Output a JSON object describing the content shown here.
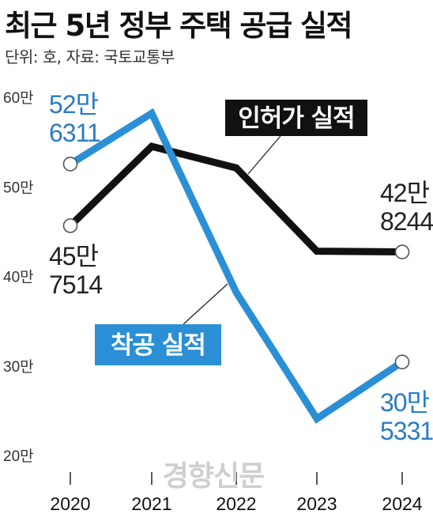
{
  "header": {
    "title": "최근 5년 정부 주택 공급 실적",
    "unit_source": "단위: 호, 자료: 국토교통부"
  },
  "watermark": "경향신문",
  "chart_data": {
    "type": "line",
    "title": "최근 5년 정부 주택 공급 실적",
    "x": [
      "2020",
      "2021",
      "2022",
      "2023",
      "2024"
    ],
    "y_ticks": [
      20,
      30,
      40,
      50,
      60
    ],
    "y_tick_labels": [
      "20만",
      "30만",
      "40만",
      "50만",
      "60만"
    ],
    "ylim": [
      20,
      60
    ],
    "grid": false,
    "series": [
      {
        "name": "인허가 실적",
        "color": "#111111",
        "values": [
          45.7514,
          54.6,
          52.2,
          42.9,
          42.8244
        ],
        "label_box": {
          "fill": "#111111",
          "text_color": "#ffffff"
        },
        "annotations": [
          {
            "index": 0,
            "lines": [
              "45만",
              "7514"
            ],
            "color": "#222222"
          },
          {
            "index": 4,
            "lines": [
              "42만",
              "8244"
            ],
            "color": "#222222"
          }
        ]
      },
      {
        "name": "착공 실적",
        "color": "#2b8fd6",
        "values": [
          52.6311,
          58.3,
          38.3,
          24.2,
          30.5331
        ],
        "label_box": {
          "fill": "#2b8fd6",
          "text_color": "#ffffff"
        },
        "annotations": [
          {
            "index": 0,
            "lines": [
              "52만",
              "6311"
            ],
            "color": "#2b7cc4"
          },
          {
            "index": 4,
            "lines": [
              "30만",
              "5331"
            ],
            "color": "#2b7cc4"
          }
        ]
      }
    ]
  }
}
